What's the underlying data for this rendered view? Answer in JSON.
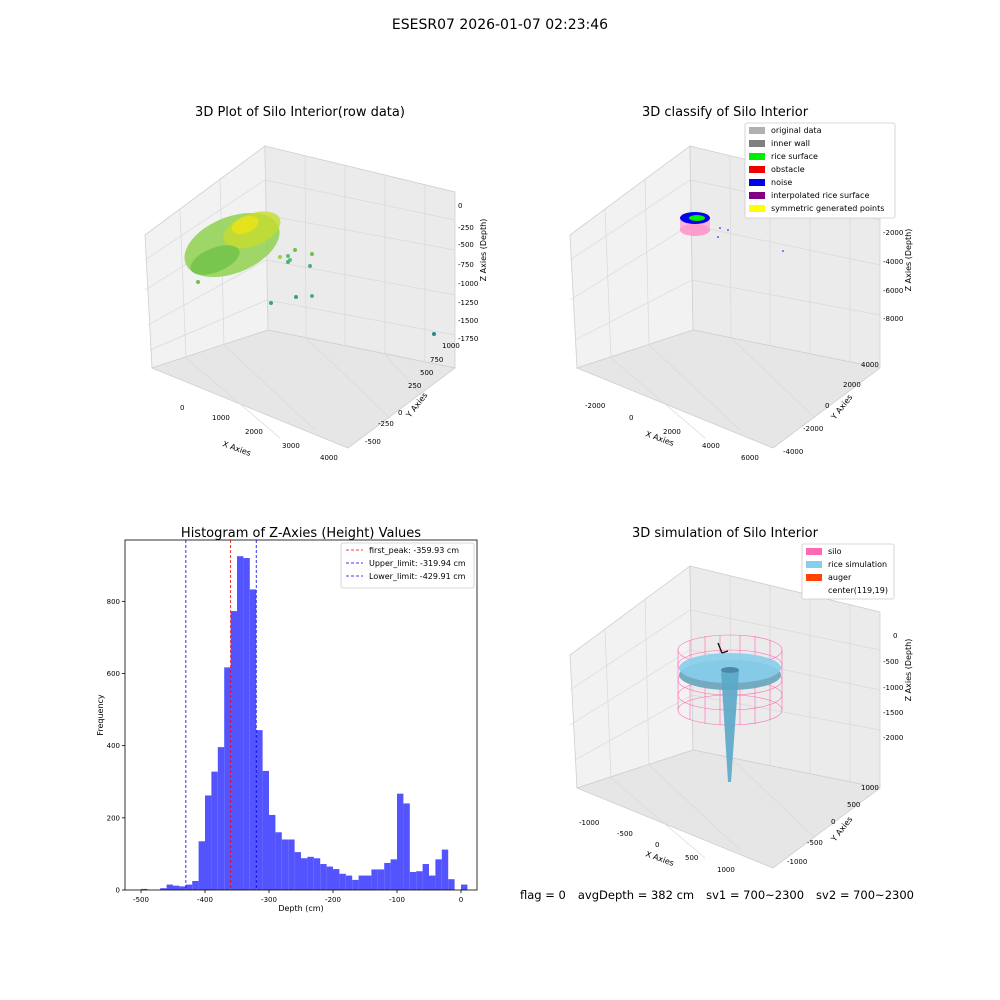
{
  "suptitle": "ESESR07 2026-01-07 02:23:46",
  "chart_data": [
    {
      "type": "scatter3d",
      "title": "3D Plot of Silo Interior(row data)",
      "xlabel": "X Axies",
      "ylabel": "Y Axies",
      "zlabel": "Z Axies (Depth)",
      "xticks": [
        "0",
        "1000",
        "2000",
        "3000",
        "4000"
      ],
      "yticks": [
        "-500",
        "-250",
        "0",
        "250",
        "500",
        "750",
        "1000"
      ],
      "zticks": [
        "0",
        "-250",
        "-500",
        "-750",
        "-1000",
        "-1250",
        "-1500",
        "-1750"
      ],
      "colors": {
        "points": "#7ccd4a",
        "high": "#e8e21a",
        "low": "#4aae8a"
      }
    },
    {
      "type": "scatter3d",
      "title": "3D classify of Silo Interior",
      "xlabel": "X Axies",
      "ylabel": "Y Axies",
      "zlabel": "Z Axies (Depth)",
      "xticks": [
        "-2000",
        "0",
        "2000",
        "4000",
        "6000"
      ],
      "yticks": [
        "-4000",
        "-2000",
        "0",
        "2000",
        "4000"
      ],
      "zticks": [
        "0",
        "-2000",
        "-4000",
        "-6000",
        "-8000"
      ],
      "legend": [
        {
          "label": "original data",
          "color": "#b0b0b0"
        },
        {
          "label": "inner wall",
          "color": "#808080"
        },
        {
          "label": "rice surface",
          "color": "#00ee00"
        },
        {
          "label": "obstacle",
          "color": "#ee0000"
        },
        {
          "label": "noise",
          "color": "#0000ee"
        },
        {
          "label": "interpolated rice surface",
          "color": "#800080"
        },
        {
          "label": "symmetric generated points",
          "color": "#ffff00"
        }
      ],
      "legend_position": "top-right"
    },
    {
      "type": "bar",
      "title": "Histogram of Z-Axies (Height) Values",
      "xlabel": "Depth (cm)",
      "ylabel": "Frequency",
      "bin_width": 10,
      "bin_start": -500,
      "values": [
        3,
        0,
        0,
        5,
        15,
        12,
        10,
        15,
        25,
        135,
        262,
        328,
        396,
        617,
        773,
        925,
        920,
        833,
        443,
        330,
        208,
        160,
        140,
        140,
        105,
        88,
        92,
        88,
        72,
        65,
        58,
        45,
        40,
        28,
        40,
        40,
        57,
        57,
        75,
        85,
        267,
        240,
        50,
        52,
        72,
        40,
        85,
        112,
        30,
        0,
        15
      ],
      "xlim": [
        -525,
        25
      ],
      "ylim": [
        0,
        970
      ],
      "xticks": [
        -500,
        -400,
        -300,
        -200,
        -100,
        0
      ],
      "yticks": [
        0,
        200,
        400,
        600,
        800
      ],
      "lines": [
        {
          "x": -359.93,
          "label": "first_peak: -359.93 cm",
          "color": "#ee0000"
        },
        {
          "x": -319.94,
          "label": "Upper_limit: -319.94 cm",
          "color": "#0000ee"
        },
        {
          "x": -429.91,
          "label": "Lower_limit: -429.91 cm",
          "color": "#0000ee"
        }
      ],
      "bar_color": "#4b4bff",
      "legend_position": "top-right"
    },
    {
      "type": "surface3d",
      "title": "3D simulation of Silo Interior",
      "xlabel": "X Axies",
      "ylabel": "Y Axies",
      "zlabel": "Z Axies (Depth)",
      "xticks": [
        "-1000",
        "-500",
        "0",
        "500",
        "1000"
      ],
      "yticks": [
        "-1000",
        "-500",
        "0",
        "500",
        "1000"
      ],
      "zticks": [
        "0",
        "-500",
        "-1000",
        "-1500",
        "-2000"
      ],
      "legend": [
        {
          "label": "silo",
          "color": "#ff69b4"
        },
        {
          "label": "rice simulation",
          "color": "#87ceeb"
        },
        {
          "label": "auger",
          "color": "#ff4500"
        },
        {
          "label": "center(119,19)",
          "color": ""
        }
      ],
      "legend_position": "top-right"
    }
  ],
  "status": {
    "flag": "flag = 0",
    "avg_depth": "avgDepth = 382 cm",
    "sv1": "sv1 = 700~2300",
    "sv2": "sv2 = 700~2300"
  }
}
